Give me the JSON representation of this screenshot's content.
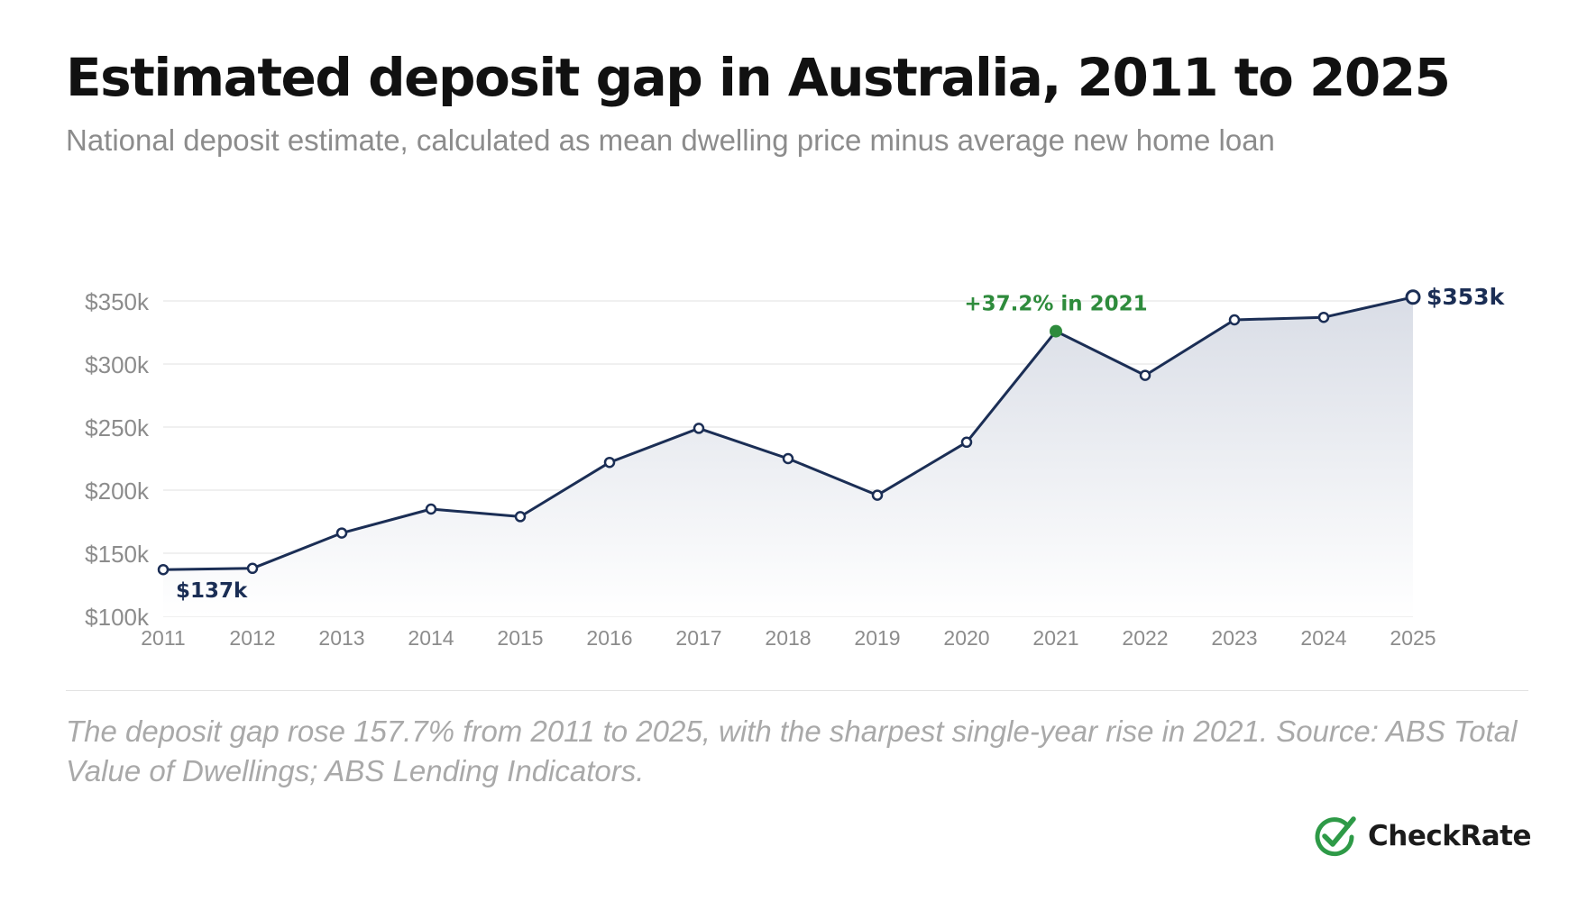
{
  "header": {
    "title": "Estimated deposit gap in Australia, 2011 to 2025",
    "subtitle": "National deposit estimate, calculated as mean dwelling price minus average new home loan"
  },
  "caption": "The deposit gap rose 157.7% from 2011 to 2025, with the sharpest single-year rise in 2021. Source: ABS Total Value of Dwellings; ABS Lending Indicators.",
  "brand": {
    "name": "CheckRate",
    "logo_icon": "check-circle-icon",
    "logo_color": "#2e9a47"
  },
  "colors": {
    "line": "#1b2e55",
    "highlight": "#2e8b3c",
    "gridline": "#ececec",
    "axis_text": "#8c8c8c",
    "area_top": "#d9dde6",
    "area_bottom": "#ffffff"
  },
  "chart_data": {
    "type": "area",
    "title": "Estimated deposit gap in Australia, 2011 to 2025",
    "xlabel": "",
    "ylabel": "",
    "x": [
      "2011",
      "2012",
      "2013",
      "2014",
      "2015",
      "2016",
      "2017",
      "2018",
      "2019",
      "2020",
      "2021",
      "2022",
      "2023",
      "2024",
      "2025"
    ],
    "series": [
      {
        "values": [
          137,
          138,
          166,
          185,
          179,
          222,
          249,
          225,
          196,
          238,
          326,
          291,
          335,
          337,
          353
        ]
      }
    ],
    "ylim": [
      100,
      350
    ],
    "yticks": [
      100,
      150,
      200,
      250,
      300,
      350
    ],
    "ytick_labels": [
      "$100k",
      "$150k",
      "$200k",
      "$250k",
      "$300k",
      "$350k"
    ],
    "grid": true,
    "legend": "none",
    "annotations": [
      {
        "x": "2011",
        "text": "$137k"
      },
      {
        "x": "2021",
        "text": "+37.2% in 2021",
        "highlight": true
      },
      {
        "x": "2025",
        "text": "$353k"
      }
    ]
  }
}
